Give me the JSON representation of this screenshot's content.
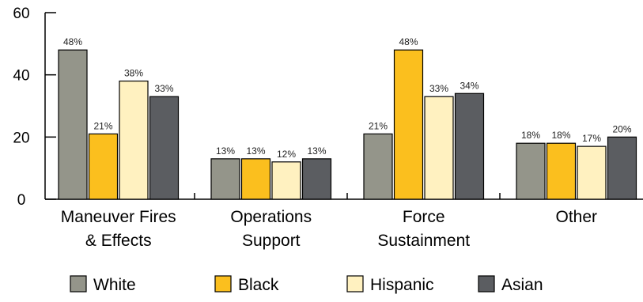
{
  "chart_data": {
    "type": "bar",
    "categories": [
      [
        "Maneuver Fires",
        "& Effects"
      ],
      [
        "Operations",
        "Support"
      ],
      [
        "Force",
        "Sustainment"
      ],
      [
        "Other"
      ]
    ],
    "series": [
      {
        "name": "White",
        "color": "#94958a",
        "values": [
          48,
          13,
          21,
          18
        ]
      },
      {
        "name": "Black",
        "color": "#fbbf1e",
        "values": [
          21,
          13,
          48,
          18
        ]
      },
      {
        "name": "Hispanic",
        "color": "#fff1c0",
        "values": [
          38,
          12,
          33,
          17
        ]
      },
      {
        "name": "Asian",
        "color": "#5b5d61",
        "values": [
          33,
          13,
          34,
          20
        ]
      }
    ],
    "data_label_suffix": "%",
    "y_ticks": [
      0,
      20,
      40,
      60
    ],
    "ylim": [
      0,
      60
    ],
    "legend_position": "bottom",
    "grid": false
  }
}
